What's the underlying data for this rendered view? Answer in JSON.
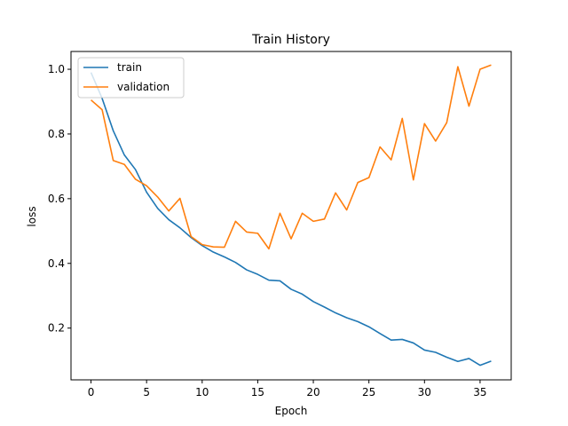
{
  "chart_data": {
    "type": "line",
    "title": "Train History",
    "xlabel": "Epoch",
    "ylabel": "loss",
    "xlim": [
      -1.8,
      37.8
    ],
    "ylim": [
      0.04,
      1.055
    ],
    "xticks": [
      0,
      5,
      10,
      15,
      20,
      25,
      30,
      35
    ],
    "yticks": [
      0.2,
      0.4,
      0.6,
      0.8,
      1.0
    ],
    "ytick_labels": [
      "0.2",
      "0.4",
      "0.6",
      "0.8",
      "1.0"
    ],
    "grid": false,
    "legend_position": "top-left",
    "x": [
      0,
      1,
      2,
      3,
      4,
      5,
      6,
      7,
      8,
      9,
      10,
      11,
      12,
      13,
      14,
      15,
      16,
      17,
      18,
      19,
      20,
      21,
      22,
      23,
      24,
      25,
      26,
      27,
      28,
      29,
      30,
      31,
      32,
      33,
      34,
      35,
      36
    ],
    "series": [
      {
        "name": "train",
        "color": "#1f77b4",
        "values": [
          0.99,
          0.91,
          0.81,
          0.735,
          0.69,
          0.62,
          0.57,
          0.535,
          0.51,
          0.48,
          0.455,
          0.435,
          0.42,
          0.403,
          0.38,
          0.366,
          0.348,
          0.346,
          0.32,
          0.305,
          0.282,
          0.265,
          0.247,
          0.232,
          0.22,
          0.204,
          0.183,
          0.163,
          0.165,
          0.154,
          0.132,
          0.125,
          0.11,
          0.097,
          0.106,
          0.085,
          0.098
        ]
      },
      {
        "name": "validation",
        "color": "#ff7f0e",
        "values": [
          0.905,
          0.875,
          0.718,
          0.706,
          0.66,
          0.64,
          0.605,
          0.562,
          0.601,
          0.483,
          0.458,
          0.451,
          0.45,
          0.53,
          0.497,
          0.493,
          0.445,
          0.555,
          0.476,
          0.555,
          0.53,
          0.537,
          0.618,
          0.565,
          0.65,
          0.665,
          0.76,
          0.72,
          0.848,
          0.658,
          0.832,
          0.778,
          0.835,
          1.008,
          0.886,
          1.0,
          1.013
        ]
      }
    ]
  }
}
